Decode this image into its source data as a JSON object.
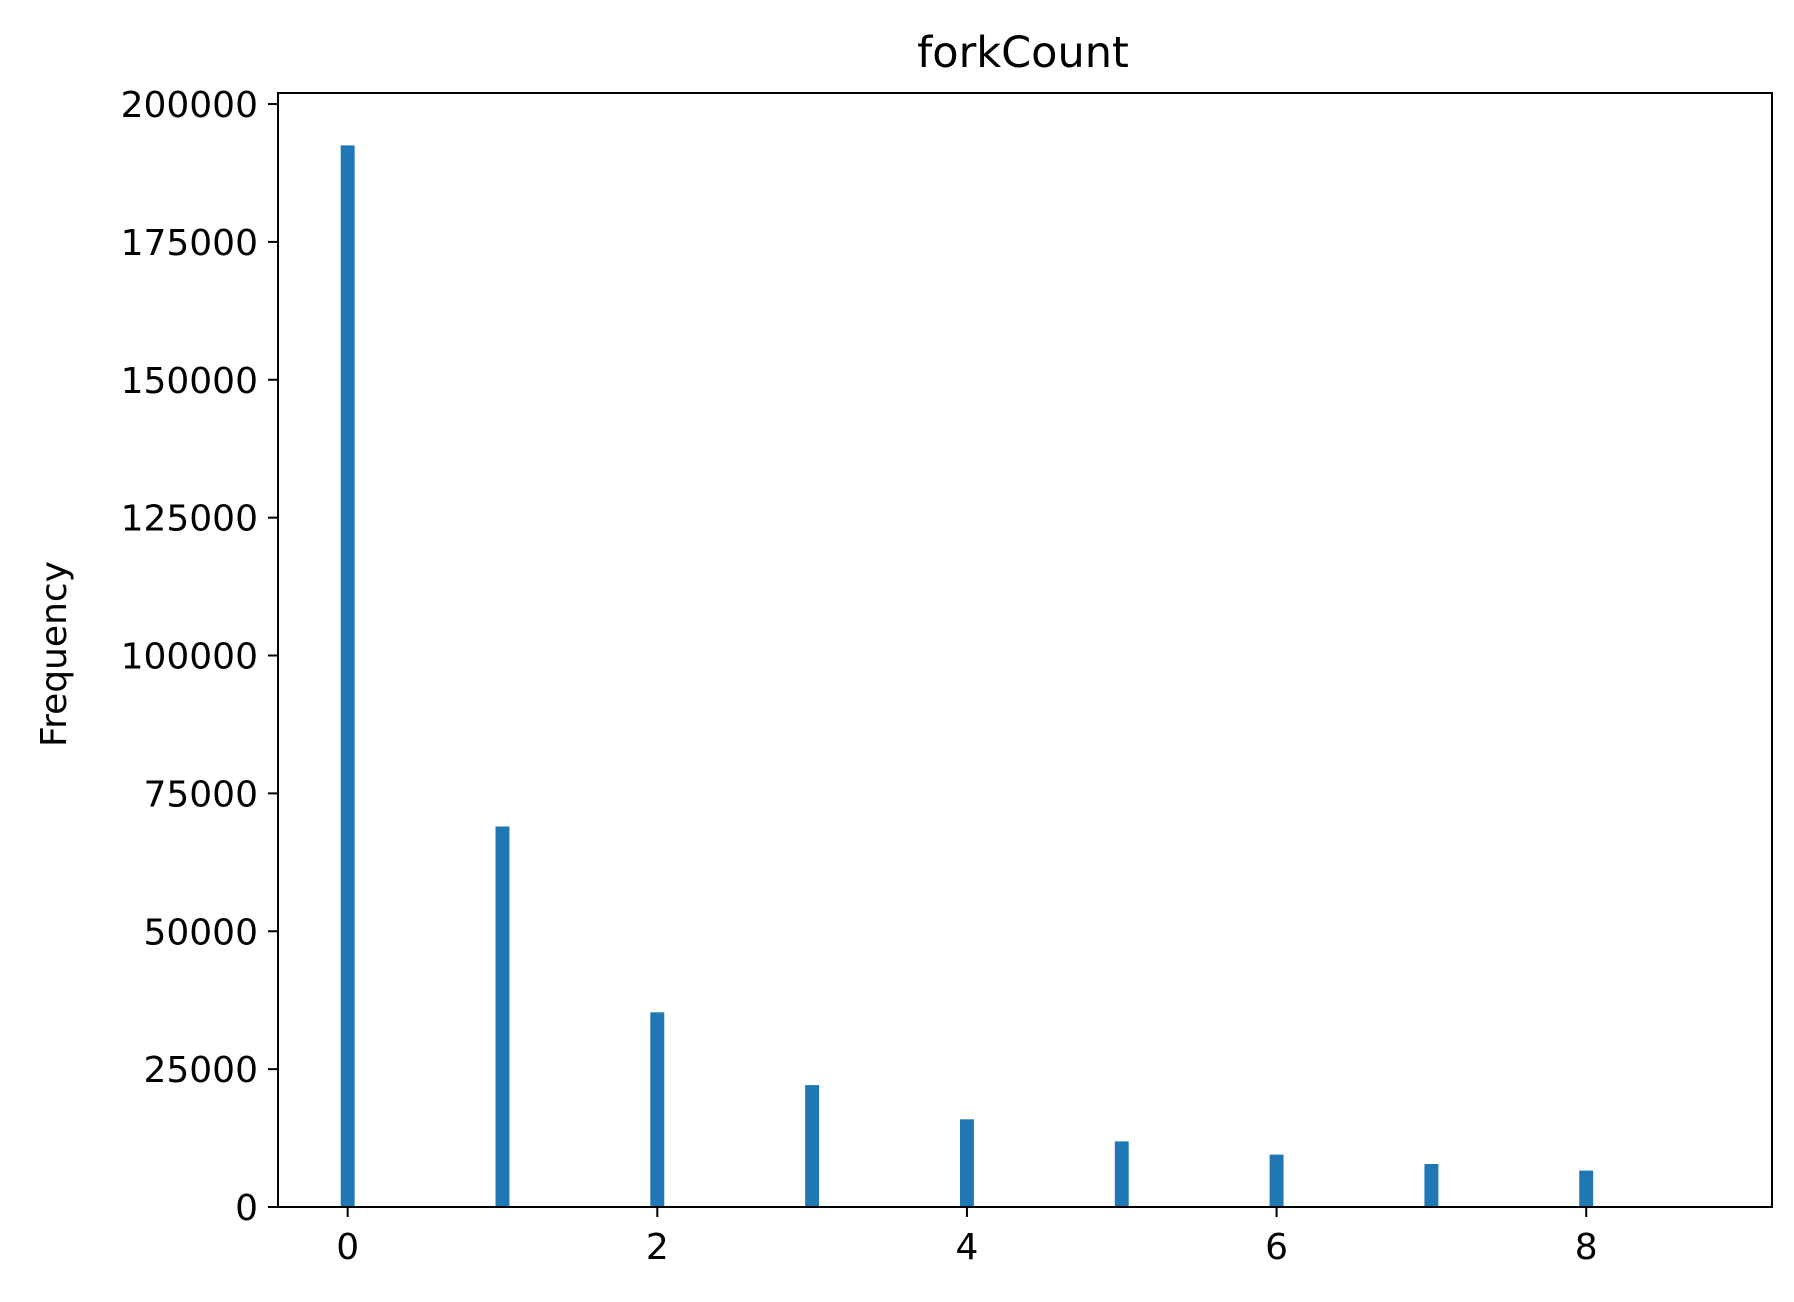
{
  "chart_data": {
    "type": "bar",
    "title": "forkCount",
    "xlabel": "",
    "ylabel": "Frequency",
    "x": [
      0,
      1,
      2,
      3,
      4,
      5,
      6,
      7,
      8
    ],
    "values": [
      192500,
      69000,
      35300,
      22100,
      15900,
      11900,
      9500,
      7800,
      6600
    ],
    "xlim": [
      -0.45,
      9.2
    ],
    "ylim": [
      0,
      202000
    ],
    "xticks": [
      0,
      2,
      4,
      6,
      8
    ],
    "xtick_labels": [
      "0",
      "2",
      "4",
      "6",
      "8"
    ],
    "yticks": [
      0,
      25000,
      50000,
      75000,
      100000,
      125000,
      150000,
      175000,
      200000
    ],
    "ytick_labels": [
      "0",
      "25000",
      "50000",
      "75000",
      "100000",
      "125000",
      "150000",
      "175000",
      "200000"
    ],
    "bar_width": 0.09,
    "bar_color": "#1f77b4",
    "grid": false,
    "legend": "none"
  }
}
